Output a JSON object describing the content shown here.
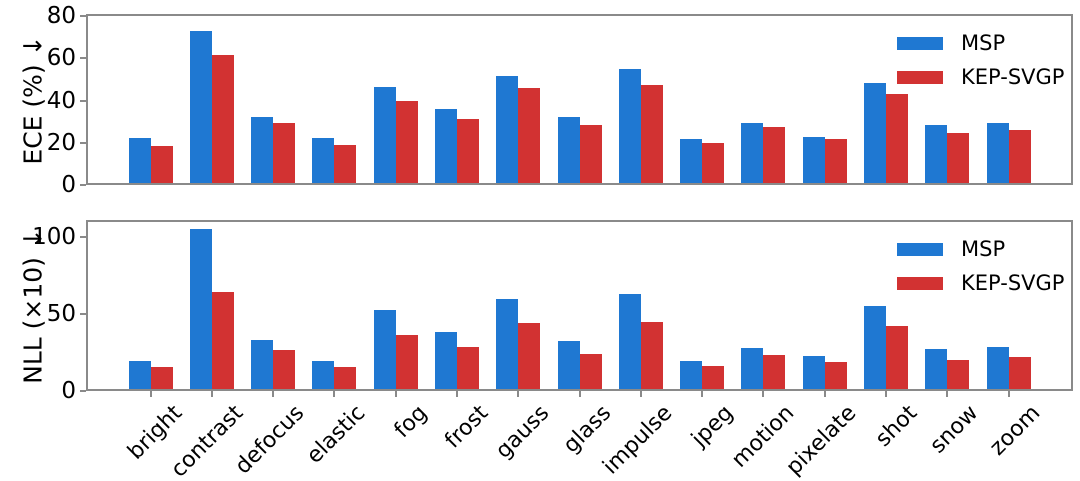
{
  "figure": {
    "background": "#ffffff",
    "spine_color": "#8a8a8a",
    "tick_color": "#8a8a8a",
    "text_color": "#000000"
  },
  "colors": {
    "msp": "#1f78d2",
    "kep_svgp": "#d23232"
  },
  "legend": {
    "items": [
      "MSP",
      "KEP-SVGP"
    ]
  },
  "chart_data": [
    {
      "type": "bar",
      "ylabel": "ECE (%) ↓",
      "categories": [
        "bright",
        "contrast",
        "defocus",
        "elastic",
        "fog",
        "frost",
        "gauss",
        "glass",
        "impulse",
        "jpeg",
        "motion",
        "pixelate",
        "shot",
        "snow",
        "zoom"
      ],
      "series": [
        {
          "name": "MSP",
          "color": "#1f78d2",
          "values": [
            21.5,
            72,
            31.5,
            21.5,
            45.5,
            35,
            50.5,
            31.5,
            54,
            21,
            28.5,
            22,
            47.5,
            27.5,
            28.5
          ]
        },
        {
          "name": "KEP-SVGP",
          "color": "#d23232",
          "values": [
            17.5,
            60.5,
            28.5,
            18,
            39,
            30.5,
            45,
            27.5,
            46.5,
            19,
            26.5,
            21,
            42,
            23.5,
            25
          ]
        }
      ],
      "yticks": [
        0,
        20,
        40,
        60,
        80
      ],
      "ylim": [
        0,
        81
      ],
      "grid": false,
      "legend_position": "upper right",
      "show_xticklabels": false
    },
    {
      "type": "bar",
      "ylabel": "NLL (×10) ↓",
      "categories": [
        "bright",
        "contrast",
        "defocus",
        "elastic",
        "fog",
        "frost",
        "gauss",
        "glass",
        "impulse",
        "jpeg",
        "motion",
        "pixelate",
        "shot",
        "snow",
        "zoom"
      ],
      "series": [
        {
          "name": "MSP",
          "color": "#1f78d2",
          "values": [
            18.5,
            104,
            31.5,
            18.5,
            51,
            37,
            58.5,
            31,
            61.5,
            18.5,
            26.5,
            21.5,
            54,
            26,
            27
          ]
        },
        {
          "name": "KEP-SVGP",
          "color": "#d23232",
          "values": [
            14,
            63,
            25,
            14,
            35,
            27,
            43,
            23,
            43.5,
            15,
            22,
            17.5,
            41,
            19,
            21
          ]
        }
      ],
      "yticks": [
        0,
        50,
        100
      ],
      "ylim": [
        0,
        111
      ],
      "grid": false,
      "legend_position": "upper right",
      "show_xticklabels": true
    }
  ]
}
